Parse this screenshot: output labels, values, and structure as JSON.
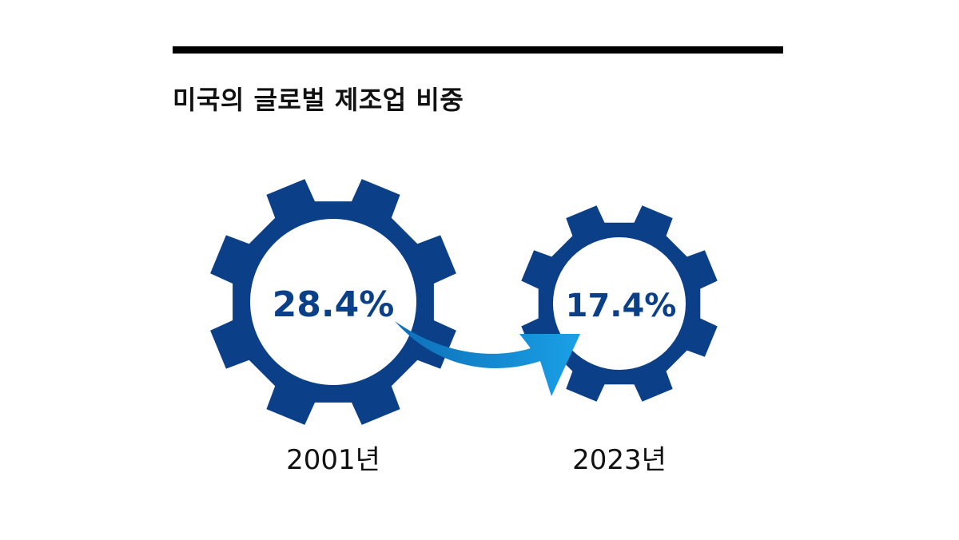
{
  "title": "미국의 글로벌 제조업 비중",
  "colors": {
    "gear": "#0b3f87",
    "value_text": "#0b3f87",
    "arrow": "#1aa0e6",
    "arrow_dark": "#0d6fb8",
    "rule": "#000000"
  },
  "items": [
    {
      "year_label": "2001년",
      "value_label": "28.4%",
      "value": 28.4
    },
    {
      "year_label": "2023년",
      "value_label": "17.4%",
      "value": 17.4
    }
  ],
  "arrow_icon": "curved-arrow-right-icon"
}
